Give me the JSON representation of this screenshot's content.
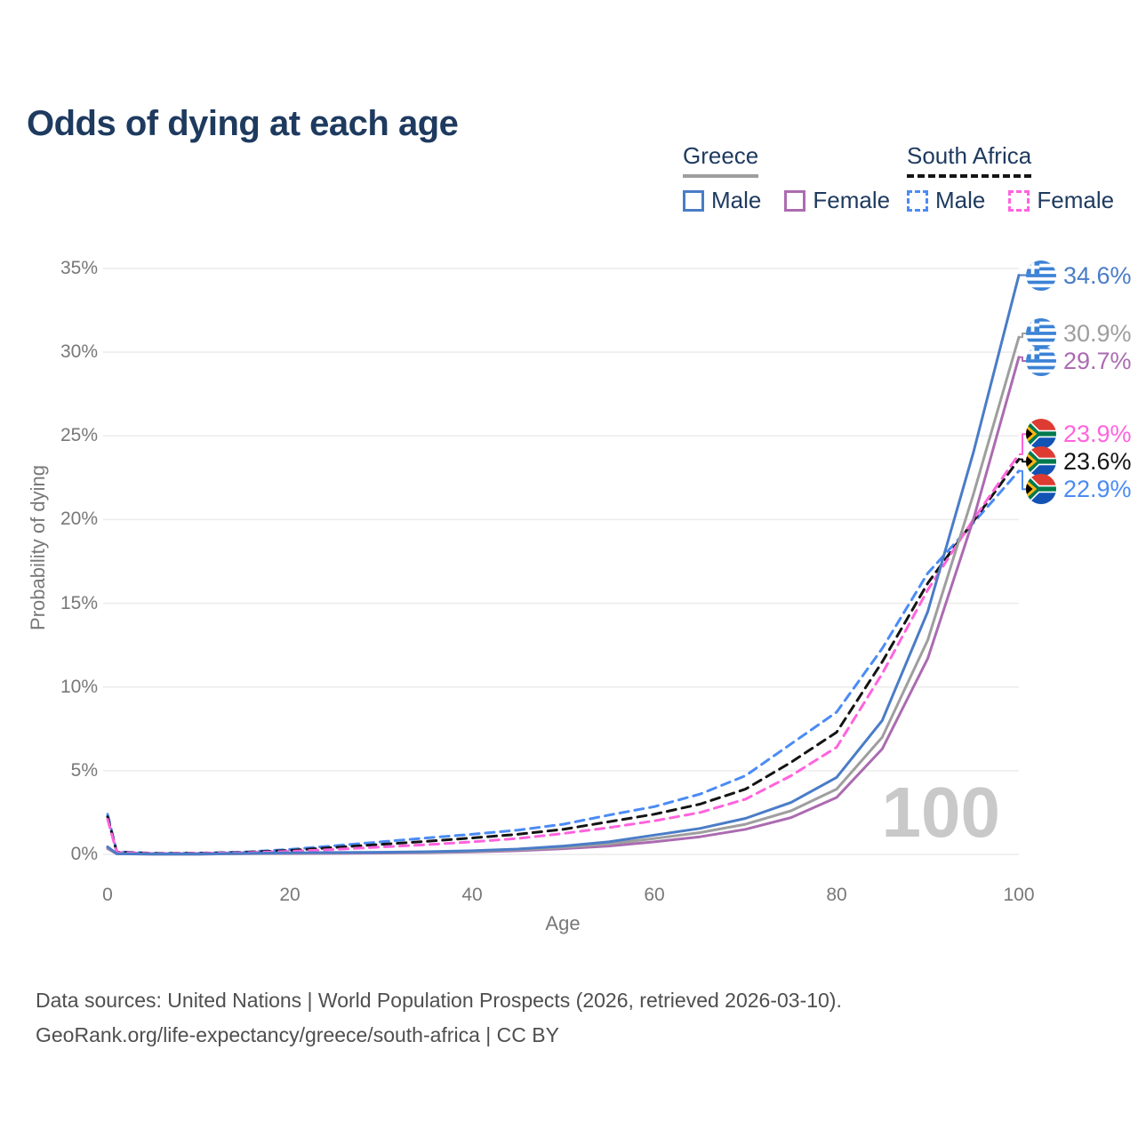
{
  "title": "Odds of dying at each age",
  "legend": {
    "groups": [
      {
        "label": "Greece",
        "line_style": "solid",
        "underline_color": "#9e9e9e",
        "items": [
          {
            "label": "Male",
            "color": "#4a7cc7"
          },
          {
            "label": "Female",
            "color": "#ab6bb0"
          }
        ]
      },
      {
        "label": "South Africa",
        "line_style": "dashed",
        "underline_color": "#141414",
        "items": [
          {
            "label": "Male",
            "color": "#4b8bf5"
          },
          {
            "label": "Female",
            "color": "#ff63dd"
          }
        ]
      }
    ]
  },
  "watermark": "100",
  "chart_data": {
    "type": "line",
    "title": "Odds of dying at each age",
    "xlabel": "Age",
    "ylabel": "Probability of dying",
    "xlim": [
      0,
      100
    ],
    "ylim_percent": [
      0,
      35
    ],
    "grid": "horizontal",
    "legend_position": "top-right",
    "x": [
      0,
      1,
      5,
      10,
      15,
      20,
      25,
      30,
      35,
      40,
      45,
      50,
      55,
      60,
      65,
      70,
      75,
      80,
      85,
      90,
      95,
      100
    ],
    "xticks": [
      {
        "v": 0,
        "label": "0"
      },
      {
        "v": 20,
        "label": "20"
      },
      {
        "v": 40,
        "label": "40"
      },
      {
        "v": 60,
        "label": "60"
      },
      {
        "v": 80,
        "label": "80"
      },
      {
        "v": 100,
        "label": "100"
      }
    ],
    "yticks": [
      {
        "v": 0,
        "label": "0%"
      },
      {
        "v": 5,
        "label": "5%"
      },
      {
        "v": 10,
        "label": "10%"
      },
      {
        "v": 15,
        "label": "15%"
      },
      {
        "v": 20,
        "label": "20%"
      },
      {
        "v": 25,
        "label": "25%"
      },
      {
        "v": 30,
        "label": "30%"
      },
      {
        "v": 35,
        "label": "35%"
      }
    ],
    "series": [
      {
        "id": "greece-male",
        "name": "Greece Male",
        "country": "Greece",
        "sex": "Male",
        "color": "#4a7cc7",
        "dashed": false,
        "flag": "greece",
        "end_label": "34.6%",
        "values": [
          0.45,
          0.04,
          0.02,
          0.02,
          0.06,
          0.09,
          0.11,
          0.13,
          0.16,
          0.22,
          0.32,
          0.5,
          0.75,
          1.15,
          1.55,
          2.15,
          3.1,
          4.6,
          8.0,
          14.5,
          24.0,
          34.6
        ]
      },
      {
        "id": "greece-both",
        "name": "Greece (both sexes)",
        "country": "Greece",
        "sex": "Both",
        "color": "#9e9e9e",
        "dashed": false,
        "flag": "greece",
        "end_label": "30.9%",
        "values": [
          0.4,
          0.035,
          0.015,
          0.015,
          0.05,
          0.07,
          0.09,
          0.11,
          0.13,
          0.18,
          0.27,
          0.42,
          0.62,
          0.95,
          1.3,
          1.8,
          2.6,
          3.9,
          7.0,
          12.8,
          21.5,
          30.9
        ]
      },
      {
        "id": "greece-female",
        "name": "Greece Female",
        "country": "Greece",
        "sex": "Female",
        "color": "#ab6bb0",
        "dashed": false,
        "flag": "greece",
        "end_label": "29.7%",
        "values": [
          0.35,
          0.03,
          0.012,
          0.012,
          0.04,
          0.05,
          0.06,
          0.08,
          0.1,
          0.15,
          0.22,
          0.34,
          0.5,
          0.75,
          1.05,
          1.5,
          2.2,
          3.4,
          6.3,
          11.7,
          20.0,
          29.7
        ]
      },
      {
        "id": "south-africa-female",
        "name": "South Africa Female",
        "country": "South Africa",
        "sex": "Female",
        "color": "#ff63dd",
        "dashed": true,
        "flag": "south-africa",
        "end_label": "23.9%",
        "values": [
          2.1,
          0.12,
          0.05,
          0.06,
          0.1,
          0.18,
          0.3,
          0.44,
          0.58,
          0.75,
          0.95,
          1.25,
          1.6,
          2.0,
          2.5,
          3.3,
          4.7,
          6.4,
          10.8,
          15.8,
          20.0,
          23.9
        ]
      },
      {
        "id": "south-africa-both",
        "name": "South Africa (both sexes)",
        "country": "South Africa",
        "sex": "Both",
        "color": "#141414",
        "dashed": true,
        "flag": "south-africa",
        "end_label": "23.6%",
        "values": [
          2.25,
          0.14,
          0.06,
          0.07,
          0.12,
          0.24,
          0.42,
          0.6,
          0.78,
          0.98,
          1.2,
          1.5,
          1.95,
          2.4,
          3.0,
          3.9,
          5.5,
          7.3,
          11.5,
          16.2,
          19.9,
          23.6
        ]
      },
      {
        "id": "south-africa-male",
        "name": "South Africa Male",
        "country": "South Africa",
        "sex": "Male",
        "color": "#4b8bf5",
        "dashed": true,
        "flag": "south-africa",
        "end_label": "22.9%",
        "values": [
          2.4,
          0.16,
          0.07,
          0.08,
          0.14,
          0.3,
          0.52,
          0.75,
          0.98,
          1.2,
          1.45,
          1.8,
          2.35,
          2.85,
          3.6,
          4.7,
          6.6,
          8.5,
          12.3,
          16.8,
          19.8,
          22.9
        ]
      }
    ]
  },
  "footer": {
    "line1": "Data sources: United Nations | World Population Prospects (2026, retrieved 2026-03-10).",
    "line2": "GeoRank.org/life-expectancy/greece/south-africa | CC BY"
  }
}
